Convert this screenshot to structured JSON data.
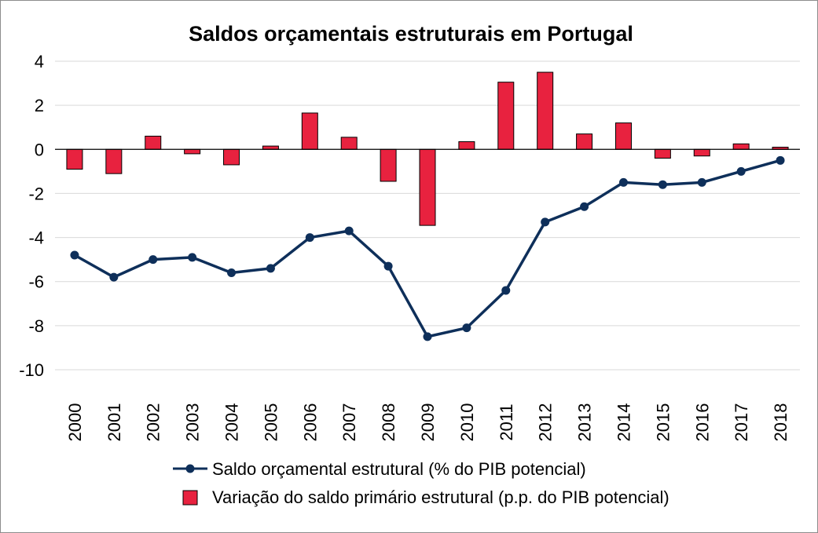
{
  "chart_data": {
    "type": "bar+line",
    "title": "Saldos orçamentais estruturais em Portugal",
    "xlabel": "",
    "ylabel": "",
    "ylim": [
      -10,
      4
    ],
    "yticks": [
      "4",
      "2",
      "0",
      "-2",
      "-4",
      "-6",
      "-8",
      "-10"
    ],
    "ytick_values": [
      4,
      2,
      0,
      -2,
      -4,
      -6,
      -8,
      -10
    ],
    "categories": [
      "2000",
      "2001",
      "2002",
      "2003",
      "2004",
      "2005",
      "2006",
      "2007",
      "2008",
      "2009",
      "2010",
      "2011",
      "2012",
      "2013",
      "2014",
      "2015",
      "2016",
      "2017",
      "2018"
    ],
    "grid": "horizontal",
    "legend_position": "bottom",
    "series": [
      {
        "name": "Saldo orçamental estrutural (% do PIB potencial)",
        "kind": "line",
        "color": "#0e2f5a",
        "values": [
          -4.8,
          -5.8,
          -5.0,
          -4.9,
          -5.6,
          -5.4,
          -4.0,
          -3.7,
          -5.3,
          -8.5,
          -8.1,
          -6.4,
          -3.3,
          -2.6,
          -1.5,
          -1.6,
          -1.5,
          -1.0,
          -0.5
        ]
      },
      {
        "name": "Variação do saldo primário estrutural (p.p. do PIB potencial)",
        "kind": "bar",
        "color": "#e8223f",
        "values": [
          -0.9,
          -1.1,
          0.6,
          -0.2,
          -0.7,
          0.15,
          1.65,
          0.55,
          -1.45,
          -3.45,
          0.35,
          3.05,
          3.5,
          0.7,
          1.2,
          -0.4,
          -0.3,
          0.25,
          0.1
        ]
      }
    ]
  }
}
